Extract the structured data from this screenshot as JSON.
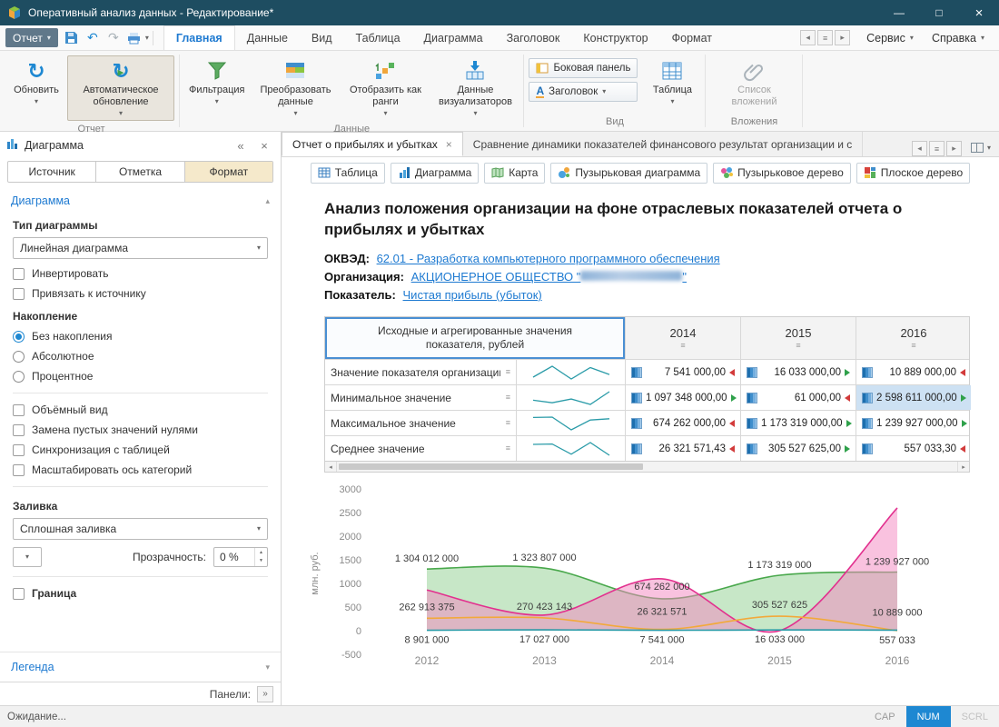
{
  "window": {
    "title": "Оперативный анализ данных - Редактирование*"
  },
  "icons": {
    "caret": "▾",
    "minimize": "—",
    "maximize": "□",
    "close": "×",
    "collapse_left": "«",
    "panel_close": "×",
    "tab_close": "×",
    "filter_rows": "≡",
    "nav_left": "◂",
    "nav_right": "▸",
    "expand": "»",
    "section_up": "▴",
    "section_down": "▾",
    "spin_up": "▲",
    "spin_down": "▼",
    "refresh": "↻",
    "undo": "↶",
    "redo": "↷",
    "play": "▶",
    "header_a": "A"
  },
  "quickbar": {
    "report": "Отчет"
  },
  "tabs": {
    "items": [
      "Главная",
      "Данные",
      "Вид",
      "Таблица",
      "Диаграмма",
      "Заголовок",
      "Конструктор",
      "Формат"
    ],
    "active": "Главная",
    "right": [
      "Сервис",
      "Справка"
    ]
  },
  "ribbon": {
    "refresh": "Обновить",
    "auto_refresh": "Автоматическое обновление",
    "group_report": "Отчет",
    "filter": "Фильтрация",
    "transform": "Преобразовать данные",
    "ranks": "Отобразить как ранги",
    "visualizers": "Данные визуализаторов",
    "group_data": "Данные",
    "side_panel": "Боковая панель",
    "header_btn": "Заголовок",
    "table_btn": "Таблица",
    "group_view": "Вид",
    "attachments": "Список вложений",
    "group_attachments": "Вложения"
  },
  "panel": {
    "title": "Диаграмма",
    "tabs": [
      "Источник",
      "Отметка",
      "Формат"
    ],
    "active_tab": "Формат",
    "section": "Диаграмма",
    "chart_type_label": "Тип диаграммы",
    "chart_type_value": "Линейная диаграмма",
    "invert": "Инвертировать",
    "bind_source": "Привязать к источнику",
    "accumulation_label": "Накопление",
    "acc_none": "Без накопления",
    "acc_abs": "Абсолютное",
    "acc_pct": "Процентное",
    "volume": "Объёмный вид",
    "replace_empty": "Замена пустых значений нулями",
    "sync_table": "Синхронизация с таблицей",
    "scale_axis": "Масштабировать ось категорий",
    "fill_label": "Заливка",
    "fill_value": "Сплошная заливка",
    "transparency_label": "Прозрачность:",
    "transparency_value": "0 %",
    "border": "Граница",
    "legend": "Легенда",
    "panels_label": "Панели:"
  },
  "doc": {
    "tab1": "Отчет о прибылях и убытках",
    "tab2": "Сравнение динамики показателей финансового результат организации и с",
    "views": [
      {
        "label": "Таблица",
        "icon": "table-icon"
      },
      {
        "label": "Диаграмма",
        "icon": "chart-icon"
      },
      {
        "label": "Карта",
        "icon": "map-icon"
      },
      {
        "label": "Пузырьковая диаграмма",
        "icon": "bubble-chart-icon"
      },
      {
        "label": "Пузырьковое дерево",
        "icon": "bubble-tree-icon"
      },
      {
        "label": "Плоское дерево",
        "icon": "flat-tree-icon"
      }
    ],
    "title": "Анализ положения организации на фоне отраслевых показателей отчета о прибылях и убытках",
    "okved_label": "ОКВЭД:",
    "okved_value": "62.01 - Разработка компьютерного программного обеспечения",
    "org_label": "Организация:",
    "org_value_prefix": "АКЦИОНЕРНОЕ ОБЩЕСТВО \"",
    "org_value_suffix": "\"",
    "indicator_label": "Показатель:",
    "indicator_value": "Чистая прибыль (убыток)"
  },
  "table": {
    "header": "Исходные и агрегированные значения показателя, рублей",
    "years": [
      "2014",
      "2015",
      "2016"
    ],
    "rows": [
      {
        "label": "Значение показателя организации",
        "values": [
          "7 541 000,00",
          "16 033 000,00",
          "10 889 000,00"
        ],
        "dirs": [
          "down",
          "up",
          "down"
        ],
        "selected": [
          false,
          false,
          false
        ]
      },
      {
        "label": "Минимальное значение",
        "values": [
          "1 097 348 000,00",
          "61 000,00",
          "2 598 611 000,00"
        ],
        "dirs": [
          "up",
          "down",
          "up"
        ],
        "selected": [
          false,
          false,
          true
        ]
      },
      {
        "label": "Максимальное значение",
        "values": [
          "674 262 000,00",
          "1 173 319 000,00",
          "1 239 927 000,00"
        ],
        "dirs": [
          "down",
          "up",
          "up"
        ],
        "selected": [
          false,
          false,
          false
        ]
      },
      {
        "label": "Среднее значение",
        "values": [
          "26 321 571,43",
          "305 527 625,00",
          "557 033,30"
        ],
        "dirs": [
          "down",
          "up",
          "down"
        ],
        "selected": [
          false,
          false,
          false
        ]
      }
    ]
  },
  "chart_data": {
    "type": "area",
    "x": [
      "2012",
      "2013",
      "2014",
      "2015",
      "2016"
    ],
    "ylabel": "млн. руб.",
    "yticks": [
      3000,
      2500,
      2000,
      1500,
      1000,
      500,
      0,
      -500
    ],
    "ylim": [
      -500,
      3000
    ],
    "legend_position": "none",
    "grid": false,
    "series": [
      {
        "name": "Максимальное значение",
        "type": "area",
        "color": "#49a84c",
        "fill": "#8fd08f",
        "values": [
          1304.012,
          1323.807,
          674.262,
          1173.319,
          1239.927
        ]
      },
      {
        "name": "Минимальное значение",
        "type": "area",
        "color": "#e2308e",
        "fill": "#f386c0",
        "values": [
          860,
          330,
          1097.348,
          0.061,
          2598.611
        ]
      },
      {
        "name": "Среднее значение",
        "type": "line",
        "color": "#f2a93b",
        "values": [
          262.913,
          270.423,
          26.322,
          305.528,
          0.557
        ]
      },
      {
        "name": "Значение показателя организации",
        "type": "line",
        "color": "#2a9ba8",
        "values": [
          8.901,
          17.027,
          7.541,
          16.033,
          10.889
        ]
      }
    ],
    "point_labels": [
      {
        "xi": 0,
        "v": 1304.012,
        "dy": -8,
        "text": "1 304 012 000"
      },
      {
        "xi": 1,
        "v": 1323.807,
        "dy": -8,
        "text": "1 323 807 000"
      },
      {
        "xi": 2,
        "v": 674.262,
        "dy": -10,
        "text": "674 262 000"
      },
      {
        "xi": 3,
        "v": 1173.319,
        "dy": -8,
        "text": "1 173 319 000"
      },
      {
        "xi": 4,
        "v": 1239.927,
        "dy": -8,
        "text": "1 239 927 000"
      },
      {
        "xi": 0,
        "v": 262.913,
        "dy": -9,
        "text": "262 913 375"
      },
      {
        "xi": 1,
        "v": 270.423,
        "dy": -9,
        "text": "270 423 143"
      },
      {
        "xi": 2,
        "v": 26.322,
        "dy": -16,
        "text": "26 321 571"
      },
      {
        "xi": 3,
        "v": 305.528,
        "dy": -9,
        "text": "305 527 625"
      },
      {
        "xi": 4,
        "v": 10.889,
        "dy": -16,
        "text": "10 889 000"
      },
      {
        "xi": 0,
        "v": 8.901,
        "dy": 14,
        "text": "8 901 000"
      },
      {
        "xi": 1,
        "v": 17.027,
        "dy": 14,
        "text": "17 027 000"
      },
      {
        "xi": 2,
        "v": 7.541,
        "dy": 14,
        "text": "7 541 000"
      },
      {
        "xi": 3,
        "v": 16.033,
        "dy": 14,
        "text": "16 033 000"
      },
      {
        "xi": 4,
        "v": 0.557,
        "dy": 14,
        "text": "557 033"
      }
    ]
  },
  "statusbar": {
    "status": "Ожидание...",
    "cap": "CAP",
    "num": "NUM",
    "scrl": "SCRL"
  }
}
